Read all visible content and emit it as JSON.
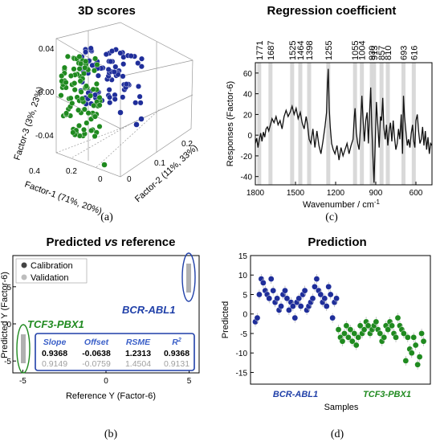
{
  "chart_data": [
    {
      "panel": "(a)",
      "type": "scatter",
      "title": "3D scores",
      "xlabel": "Factor-1 (71%, 20%)",
      "ylabel": "Factor-2 (11%, 33%)",
      "zlabel": "Factor-3 (3%, 23%)",
      "z_ticks": [
        "0.04",
        "0.00",
        "-0.04"
      ],
      "x_ticks": [
        "0.4",
        "0.2",
        "0"
      ],
      "y_ticks": [
        "0",
        "0.1",
        "0.2"
      ],
      "series": [
        {
          "color": "#1f2e9a",
          "n_points": 85
        },
        {
          "color": "#1f8a1f",
          "n_points": 95
        }
      ]
    },
    {
      "panel": "(c)",
      "type": "line",
      "title": "Regression coefficient",
      "xlabel": "Wavenumber / cm",
      "xlabel_sup": "-1",
      "ylabel": "Responses (Factor-6)",
      "xlim": [
        1800,
        480
      ],
      "ylim": [
        -48,
        70
      ],
      "x_ticks": [
        "1800",
        "1500",
        "1200",
        "900",
        "600"
      ],
      "y_ticks": [
        "60",
        "40",
        "20",
        "0",
        "-20",
        "-40"
      ],
      "bands": [
        "1771",
        "1687",
        "1525",
        "1464",
        "1398",
        "1255",
        "1055",
        "1004",
        "930",
        "913",
        "857",
        "810",
        "693",
        "616"
      ],
      "x": [
        1800,
        1790,
        1780,
        1771,
        1760,
        1750,
        1740,
        1730,
        1720,
        1710,
        1700,
        1687,
        1675,
        1660,
        1645,
        1630,
        1615,
        1600,
        1585,
        1570,
        1555,
        1540,
        1525,
        1510,
        1495,
        1480,
        1464,
        1450,
        1435,
        1420,
        1410,
        1398,
        1385,
        1370,
        1355,
        1340,
        1325,
        1310,
        1295,
        1280,
        1268,
        1262,
        1255,
        1248,
        1240,
        1230,
        1218,
        1205,
        1190,
        1175,
        1160,
        1145,
        1130,
        1115,
        1100,
        1085,
        1070,
        1060,
        1055,
        1045,
        1035,
        1025,
        1015,
        1004,
        995,
        985,
        975,
        965,
        955,
        945,
        938,
        930,
        922,
        913,
        905,
        895,
        885,
        875,
        865,
        857,
        848,
        840,
        830,
        820,
        810,
        800,
        790,
        780,
        770,
        760,
        750,
        740,
        730,
        720,
        710,
        700,
        693,
        685,
        675,
        665,
        655,
        645,
        635,
        625,
        616,
        608,
        600,
        590,
        580,
        570,
        560,
        550,
        540,
        530,
        520,
        510,
        500,
        490,
        480
      ],
      "y": [
        -8,
        -3,
        -12,
        -5,
        2,
        -6,
        3,
        -2,
        6,
        8,
        4,
        10,
        16,
        12,
        18,
        10,
        14,
        6,
        18,
        24,
        18,
        22,
        28,
        20,
        26,
        16,
        22,
        12,
        6,
        18,
        10,
        -4,
        -8,
        6,
        -12,
        4,
        -10,
        -18,
        -6,
        8,
        22,
        48,
        64,
        26,
        8,
        -8,
        -14,
        -18,
        -10,
        -24,
        -12,
        -20,
        -14,
        -8,
        -18,
        -10,
        -4,
        18,
        26,
        2,
        -8,
        -14,
        6,
        38,
        14,
        -6,
        14,
        22,
        -8,
        26,
        46,
        8,
        -18,
        -46,
        -10,
        32,
        10,
        -12,
        18,
        14,
        36,
        8,
        -4,
        10,
        -10,
        4,
        12,
        -6,
        14,
        -2,
        -14,
        -8,
        6,
        -4,
        20,
        -18,
        38,
        18,
        4,
        -10,
        -4,
        -12,
        2,
        10,
        -6,
        -12,
        14,
        20,
        4,
        -8,
        -4,
        8,
        -10,
        4,
        -14,
        -2,
        -18,
        -8,
        -10
      ],
      "grid": false
    },
    {
      "panel": "(b)",
      "type": "scatter",
      "title": "Predicted vs reference",
      "title_parts": [
        "Predicted ",
        "vs",
        " reference"
      ],
      "xlabel": "Reference Y (Factor-6)",
      "ylabel": "Predicted Y (Factor-6)",
      "xlim": [
        -5.6,
        5.6
      ],
      "ylim": [
        -6.6,
        9.2
      ],
      "x_ticks": [
        "-5",
        "0",
        "5"
      ],
      "y_ticks": [
        "5",
        "0",
        "-5"
      ],
      "legend": [
        "Calibration",
        "Validation"
      ],
      "legend_position": "top-left",
      "series": [
        {
          "name": "Calibration",
          "color": "#444444",
          "points": [
            [
              5,
              4.4
            ],
            [
              5,
              7.2
            ],
            [
              -5,
              -3.4
            ],
            [
              -5,
              -6.2
            ]
          ]
        },
        {
          "name": "Validation",
          "color": "#bdbdbd",
          "points": [
            [
              5,
              4.6
            ],
            [
              5,
              6.6
            ],
            [
              -5,
              -3.8
            ],
            [
              -5,
              -5.8
            ]
          ]
        }
      ],
      "annotations": [
        {
          "text": "BCR-ABL1",
          "color": "#1f3fa8"
        },
        {
          "text": "TCF3-PBX1",
          "color": "#1f8a1f"
        }
      ],
      "stats_table": {
        "headers": [
          "Slope",
          "Offset",
          "RSME",
          "R",
          "2"
        ],
        "calibration": [
          "0.9368",
          "-0.0638",
          "1.2313",
          "0.9368"
        ],
        "validation": [
          "0.9149",
          "-0.0759",
          "1.4504",
          "0.9131"
        ]
      }
    },
    {
      "panel": "(d)",
      "type": "scatter",
      "title": "Prediction",
      "xlabel": "Samples",
      "ylabel": "Predicted",
      "ylim": [
        -18,
        15
      ],
      "y_ticks": [
        "15",
        "10",
        "5",
        "0",
        "-5",
        "-10",
        "-15"
      ],
      "group_labels": [
        "BCR-ABL1",
        "TCF3-PBX1"
      ],
      "series": [
        {
          "name": "BCR-ABL1",
          "color": "#1f2e9a",
          "values": [
            -2,
            -1,
            5,
            9,
            8,
            6,
            5,
            4,
            9,
            6,
            3,
            4,
            1,
            2,
            5,
            6,
            4,
            1,
            3,
            2,
            -1,
            3,
            4,
            2,
            5,
            6,
            1,
            2,
            3,
            4,
            7,
            9,
            6,
            5,
            3,
            4,
            2,
            7,
            5,
            -1,
            3,
            4
          ]
        },
        {
          "name": "TCF3-PBX1",
          "color": "#1f8a1f",
          "values": [
            -4,
            -6,
            -7,
            -5,
            -3,
            -6,
            -4,
            -7,
            -5,
            -8,
            -6,
            -3,
            -5,
            -4,
            -2,
            -3,
            -5,
            -4,
            -3,
            -2,
            -4,
            -5,
            -7,
            -6,
            -3,
            -4,
            -2,
            -3,
            -5,
            -6,
            -1,
            -3,
            -4,
            -5,
            -12,
            -6,
            -9,
            -10,
            -6,
            -8,
            -13,
            -11,
            -5,
            -7
          ]
        }
      ]
    }
  ],
  "panel_labels": [
    "(a)",
    "(b)",
    "(c)",
    "(d)"
  ]
}
